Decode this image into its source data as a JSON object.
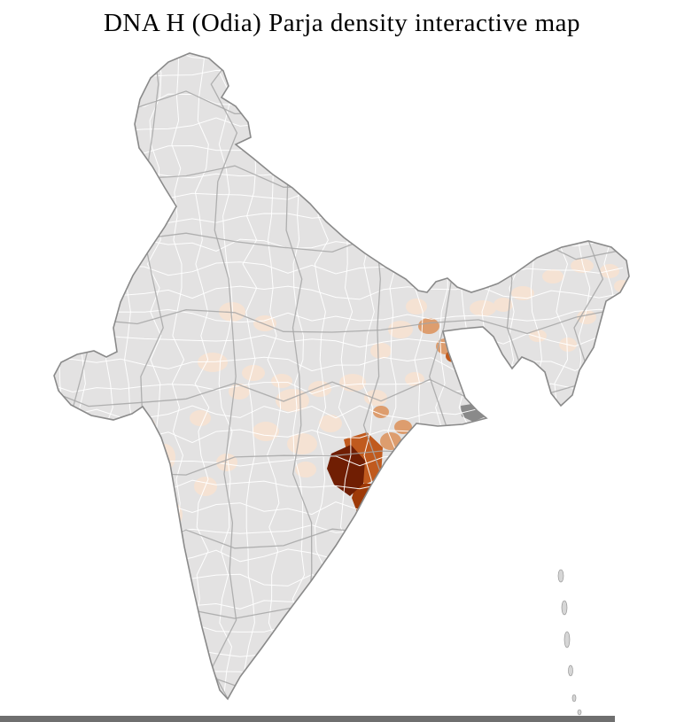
{
  "page": {
    "title": "DNA H (Odia) Parja density interactive map"
  },
  "map": {
    "region": "India",
    "type": "district-choropleth",
    "base_color": "#e3e2e2",
    "district_border_color": "#ffffff",
    "state_border_color": "#a6a6a6",
    "outline_color": "#8a8a8a",
    "island_color": "#d6d6d6",
    "delta_patch_color": "#8a8a8a",
    "density_scale": {
      "none": "#e3e2e2",
      "very_low": "#f5e2d3",
      "low": "#efccb2",
      "medium": "#dd9d6e",
      "high": "#c05a1e",
      "very_high": "#9e3a08",
      "max": "#701e03"
    }
  },
  "footer": {
    "bar_color": "#6f6f6f"
  }
}
